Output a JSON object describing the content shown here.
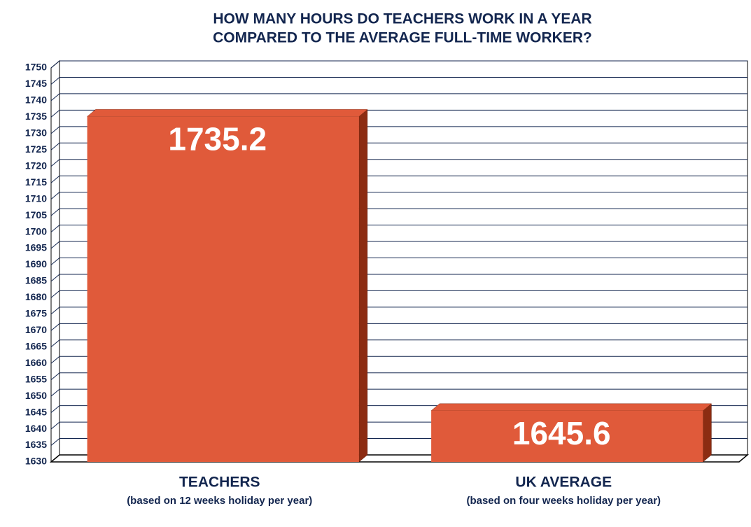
{
  "chart_data": {
    "type": "bar3d",
    "title": "HOW MANY HOURS DO TEACHERS WORK IN A YEAR",
    "subtitle": "COMPARED TO THE AVERAGE FULL-TIME WORKER?",
    "categories": [
      "TEACHERS",
      "UK AVERAGE"
    ],
    "category_notes": [
      "(based on 12 weeks holiday per year)",
      "(based on four weeks holiday per year)"
    ],
    "values": [
      1735.2,
      1645.6
    ],
    "color": "#e05a3a",
    "side_color": "#8c2c12",
    "ylim": [
      1630,
      1750
    ],
    "yticks": [
      1630,
      1635,
      1640,
      1645,
      1650,
      1655,
      1660,
      1665,
      1670,
      1675,
      1680,
      1685,
      1690,
      1695,
      1700,
      1705,
      1710,
      1715,
      1720,
      1725,
      1730,
      1735,
      1740,
      1745,
      1750
    ],
    "grid": true
  }
}
